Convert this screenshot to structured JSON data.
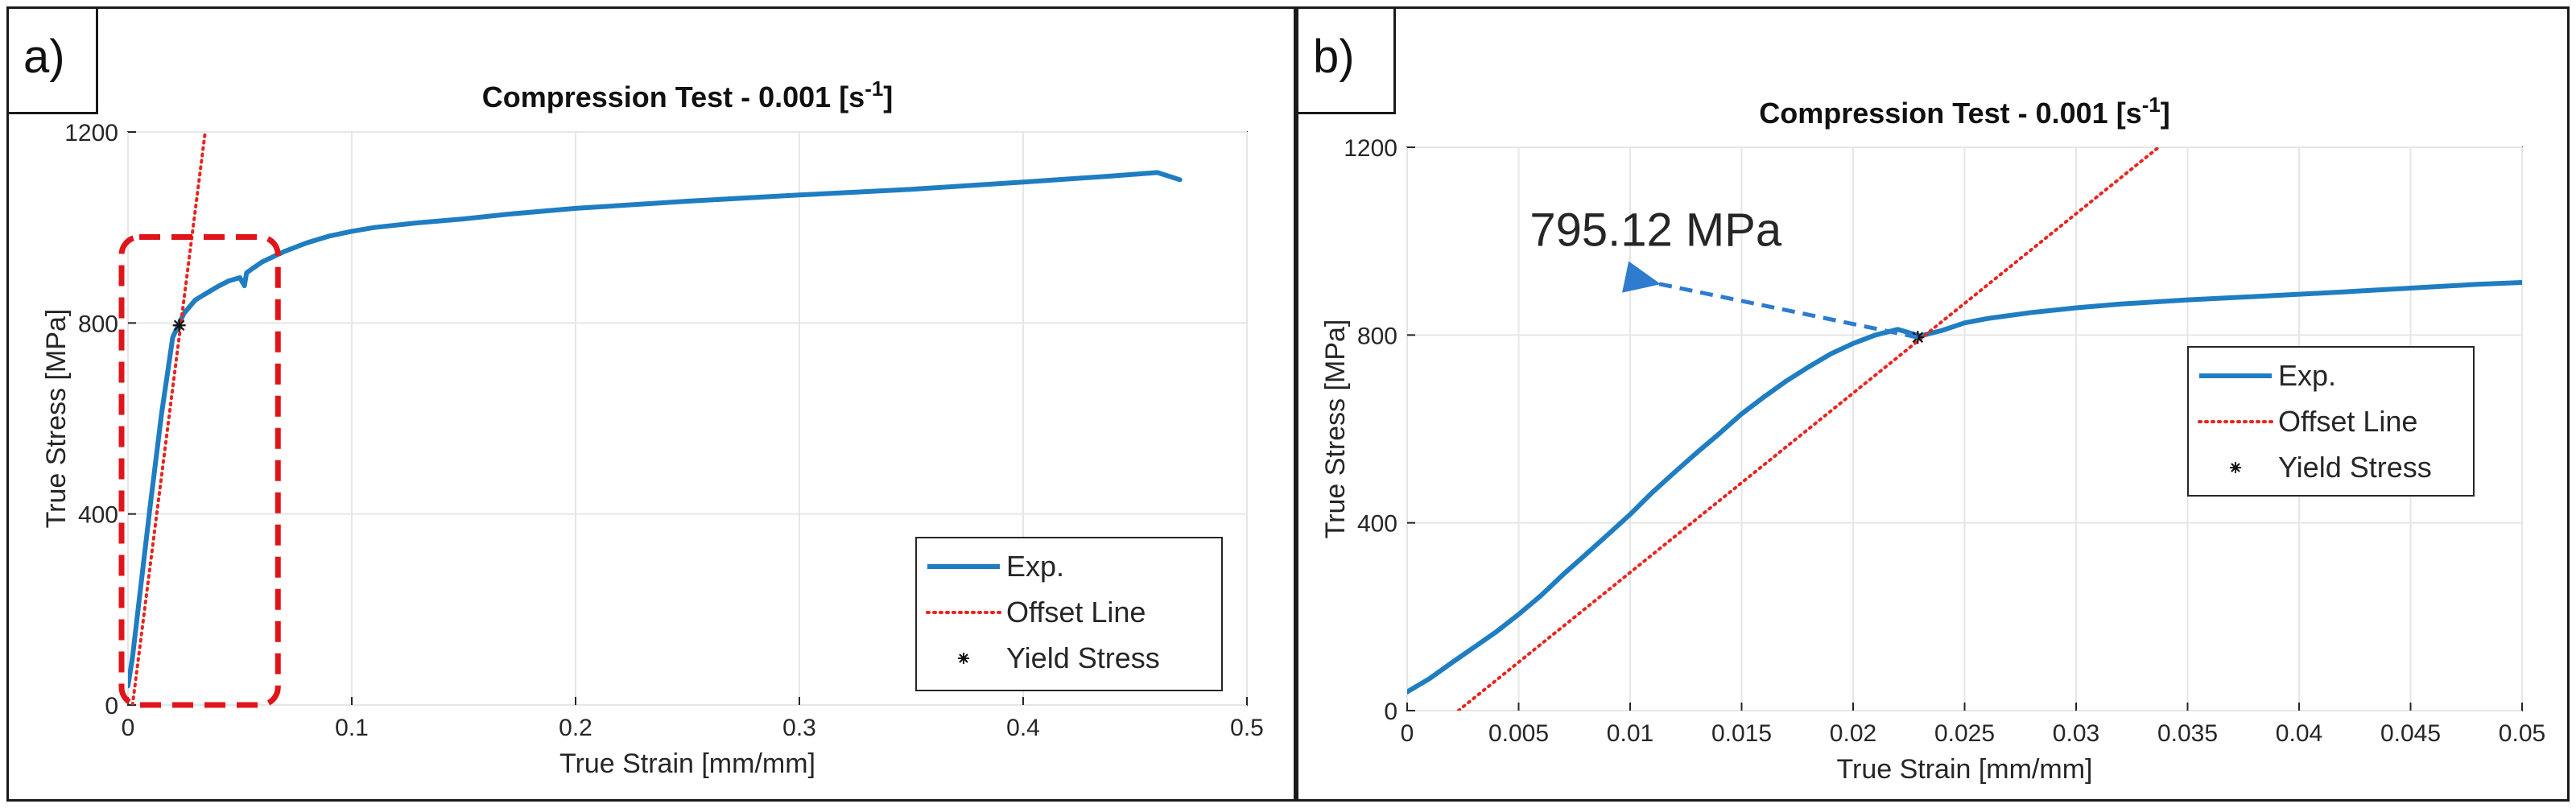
{
  "panels": {
    "a": {
      "label": "a)"
    },
    "b": {
      "label": "b)"
    }
  },
  "chart_data": [
    {
      "type": "line",
      "panel": "a)",
      "title": "Compression Test - 0.001 [s",
      "title_superscript": "-1",
      "title_suffix": "]",
      "xlabel": "True Strain [mm/mm]",
      "ylabel": "True Stress [MPa]",
      "xlim": [
        0,
        0.5
      ],
      "ylim": [
        0,
        1200
      ],
      "xticks": [
        0,
        0.1,
        0.2,
        0.3,
        0.4,
        0.5
      ],
      "xtick_labels": [
        "0",
        "0.1",
        "0.2",
        "0.3",
        "0.4",
        "0.5"
      ],
      "yticks": [
        0,
        400,
        800,
        1200
      ],
      "ytick_labels": [
        "0",
        "400",
        "800",
        "1200"
      ],
      "grid": true,
      "legend_position": "bottom-right",
      "highlight_box": {
        "x": [
          0.0,
          0.067
        ],
        "y": [
          0,
          980
        ],
        "color": "#e0151b"
      },
      "series": [
        {
          "name": "Exp.",
          "style": "solid",
          "color": "#1f7dc2",
          "x": [
            0,
            0.002,
            0.005,
            0.01,
            0.015,
            0.02,
            0.023,
            0.025,
            0.03,
            0.035,
            0.04,
            0.045,
            0.05,
            0.052,
            0.053,
            0.055,
            0.06,
            0.07,
            0.08,
            0.09,
            0.1,
            0.11,
            0.12,
            0.13,
            0.15,
            0.17,
            0.2,
            0.25,
            0.3,
            0.35,
            0.4,
            0.44,
            0.46,
            0.47
          ],
          "y": [
            40,
            100,
            220,
            420,
            610,
            770,
            800,
            820,
            848,
            862,
            876,
            888,
            895,
            878,
            905,
            912,
            928,
            950,
            968,
            982,
            992,
            1000,
            1005,
            1010,
            1018,
            1028,
            1040,
            1055,
            1068,
            1080,
            1095,
            1108,
            1115,
            1100
          ]
        },
        {
          "name": "Offset Line",
          "style": "dotted",
          "color": "#e8251f",
          "x": [
            0.002,
            0.0345
          ],
          "y": [
            0,
            1200
          ]
        },
        {
          "name": "Yield Stress",
          "style": "marker",
          "color": "#111111",
          "x": [
            0.0229
          ],
          "y": [
            795.12
          ]
        }
      ]
    },
    {
      "type": "line",
      "panel": "b)",
      "title": "Compression Test - 0.001 [s",
      "title_superscript": "-1",
      "title_suffix": "]",
      "xlabel": "True Strain [mm/mm]",
      "ylabel": "True Stress [MPa]",
      "xlim": [
        0,
        0.05
      ],
      "ylim": [
        0,
        1200
      ],
      "xticks": [
        0,
        0.005,
        0.01,
        0.015,
        0.02,
        0.025,
        0.03,
        0.035,
        0.04,
        0.045,
        0.05
      ],
      "xtick_labels": [
        "0",
        "0.005",
        "0.01",
        "0.015",
        "0.02",
        "0.025",
        "0.03",
        "0.035",
        "0.04",
        "0.045",
        "0.05"
      ],
      "yticks": [
        0,
        400,
        800,
        1200
      ],
      "ytick_labels": [
        "0",
        "400",
        "800",
        "1200"
      ],
      "grid": true,
      "legend_position": "right",
      "annotation": {
        "text": "795.12 MPa",
        "arrow_from": {
          "x": 0.0229,
          "y": 795.12
        },
        "arrow_to": {
          "x": 0.0112,
          "y": 910
        },
        "text_at": {
          "x": 0.0055,
          "y": 990
        },
        "color": "#2e7bd0"
      },
      "series": [
        {
          "name": "Exp.",
          "style": "solid",
          "color": "#1f7dc2",
          "x": [
            0,
            0.001,
            0.002,
            0.003,
            0.004,
            0.005,
            0.006,
            0.007,
            0.008,
            0.009,
            0.01,
            0.011,
            0.012,
            0.013,
            0.014,
            0.015,
            0.016,
            0.017,
            0.018,
            0.019,
            0.02,
            0.021,
            0.022,
            0.023,
            0.024,
            0.025,
            0.026,
            0.028,
            0.03,
            0.032,
            0.035,
            0.038,
            0.04,
            0.042,
            0.045,
            0.048,
            0.05
          ],
          "y": [
            40,
            68,
            102,
            135,
            168,
            205,
            245,
            290,
            332,
            375,
            418,
            465,
            508,
            550,
            590,
            632,
            668,
            702,
            732,
            760,
            782,
            800,
            812,
            798,
            810,
            826,
            835,
            848,
            858,
            866,
            875,
            882,
            887,
            892,
            900,
            908,
            912
          ]
        },
        {
          "name": "Offset Line",
          "style": "dotted",
          "color": "#e8251f",
          "x": [
            0.0023,
            0.0337
          ],
          "y": [
            0,
            1200
          ]
        },
        {
          "name": "Yield Stress",
          "style": "marker",
          "color": "#111111",
          "x": [
            0.0229
          ],
          "y": [
            795.12
          ]
        }
      ]
    }
  ]
}
